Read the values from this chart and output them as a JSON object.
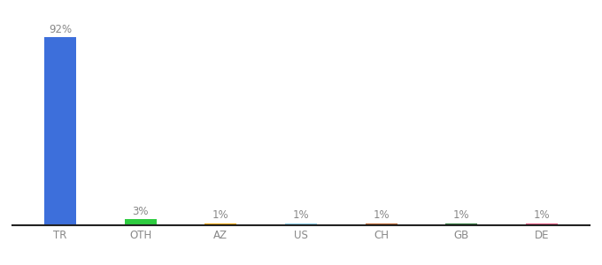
{
  "categories": [
    "TR",
    "OTH",
    "AZ",
    "US",
    "CH",
    "GB",
    "DE"
  ],
  "values": [
    92,
    3,
    1,
    1,
    1,
    1,
    1
  ],
  "labels": [
    "92%",
    "3%",
    "1%",
    "1%",
    "1%",
    "1%",
    "1%"
  ],
  "bar_colors": [
    "#3d6fdb",
    "#2ecc40",
    "#f0a500",
    "#87ceeb",
    "#c0622a",
    "#2d7a3a",
    "#e75480"
  ],
  "background_color": "#ffffff",
  "label_color": "#888888",
  "tick_color": "#888888",
  "ylim": [
    0,
    100
  ],
  "bar_width": 0.4,
  "figsize": [
    6.8,
    3.0
  ],
  "dpi": 100
}
